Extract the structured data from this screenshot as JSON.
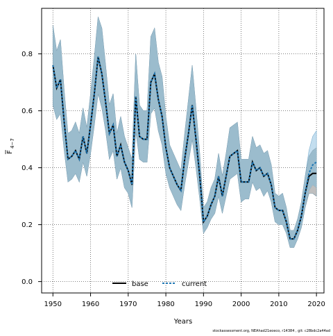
{
  "chart_data": {
    "type": "line",
    "xlabel": "Years",
    "ylabel_main": "F",
    "ylabel_sub": "4−7",
    "xlim": [
      1947,
      2022
    ],
    "ylim": [
      -0.04,
      0.96
    ],
    "x_ticks": [
      1950,
      1960,
      1970,
      1980,
      1990,
      2000,
      2010,
      2020
    ],
    "y_ticks": [
      0.0,
      0.2,
      0.4,
      0.6,
      0.8
    ],
    "x_tick_labels": [
      "1950",
      "1960",
      "1970",
      "1980",
      "1990",
      "2000",
      "2010",
      "2020"
    ],
    "y_tick_labels": [
      "0.0",
      "0.2",
      "0.4",
      "0.6",
      "0.8"
    ],
    "grid": true,
    "legend_position": "bottom-center",
    "footer": "stockassessment.org, NEAhad21eoeco, r14384 , git: c28bdc2a44ad",
    "colors": {
      "band": "#9bbccd",
      "band_edge": "#6f8ea0",
      "overlap": "#a9a9a9",
      "current_band": "#b8d8ec",
      "base_line": "#000000",
      "current_line": "#1f77b4"
    },
    "x": [
      1950,
      1951,
      1952,
      1953,
      1954,
      1955,
      1956,
      1957,
      1958,
      1959,
      1960,
      1961,
      1962,
      1963,
      1964,
      1965,
      1966,
      1967,
      1968,
      1969,
      1970,
      1971,
      1972,
      1973,
      1974,
      1975,
      1976,
      1977,
      1978,
      1979,
      1980,
      1981,
      1982,
      1983,
      1984,
      1985,
      1986,
      1987,
      1988,
      1989,
      1990,
      1991,
      1992,
      1993,
      1994,
      1995,
      1996,
      1997,
      1998,
      1999,
      2000,
      2001,
      2002,
      2003,
      2004,
      2005,
      2006,
      2007,
      2008,
      2009,
      2010,
      2011,
      2012,
      2013,
      2014,
      2015,
      2016,
      2017,
      2018,
      2019,
      2020
    ],
    "series": [
      {
        "name": "base",
        "values": [
          0.76,
          0.68,
          0.71,
          0.56,
          0.43,
          0.44,
          0.46,
          0.43,
          0.51,
          0.45,
          0.55,
          0.66,
          0.79,
          0.73,
          0.63,
          0.52,
          0.55,
          0.44,
          0.48,
          0.42,
          0.39,
          0.34,
          0.65,
          0.51,
          0.5,
          0.5,
          0.7,
          0.73,
          0.64,
          0.58,
          0.47,
          0.4,
          0.37,
          0.34,
          0.32,
          0.43,
          0.52,
          0.62,
          0.5,
          0.37,
          0.21,
          0.23,
          0.27,
          0.3,
          0.37,
          0.3,
          0.37,
          0.44,
          0.45,
          0.46,
          0.35,
          0.35,
          0.35,
          0.42,
          0.39,
          0.4,
          0.37,
          0.38,
          0.34,
          0.26,
          0.25,
          0.25,
          0.21,
          0.15,
          0.15,
          0.18,
          0.23,
          0.31,
          0.37,
          0.38,
          0.38
        ],
        "lower": [
          0.62,
          0.57,
          0.59,
          0.46,
          0.35,
          0.36,
          0.38,
          0.35,
          0.42,
          0.37,
          0.45,
          0.55,
          0.66,
          0.61,
          0.53,
          0.43,
          0.46,
          0.36,
          0.4,
          0.33,
          0.31,
          0.26,
          0.53,
          0.43,
          0.42,
          0.42,
          0.59,
          0.61,
          0.53,
          0.48,
          0.38,
          0.33,
          0.3,
          0.27,
          0.25,
          0.34,
          0.42,
          0.5,
          0.4,
          0.29,
          0.17,
          0.19,
          0.22,
          0.24,
          0.3,
          0.24,
          0.3,
          0.36,
          0.37,
          0.38,
          0.28,
          0.29,
          0.29,
          0.35,
          0.32,
          0.33,
          0.3,
          0.32,
          0.28,
          0.21,
          0.2,
          0.2,
          0.17,
          0.12,
          0.12,
          0.15,
          0.19,
          0.26,
          0.31,
          0.31,
          0.3
        ],
        "upper": [
          0.9,
          0.81,
          0.85,
          0.67,
          0.52,
          0.53,
          0.56,
          0.52,
          0.61,
          0.54,
          0.66,
          0.79,
          0.93,
          0.89,
          0.76,
          0.62,
          0.66,
          0.52,
          0.58,
          0.51,
          0.47,
          0.43,
          0.8,
          0.62,
          0.6,
          0.6,
          0.86,
          0.89,
          0.77,
          0.72,
          0.58,
          0.48,
          0.45,
          0.42,
          0.39,
          0.52,
          0.64,
          0.76,
          0.61,
          0.45,
          0.26,
          0.28,
          0.33,
          0.36,
          0.45,
          0.37,
          0.45,
          0.54,
          0.55,
          0.56,
          0.43,
          0.43,
          0.43,
          0.51,
          0.47,
          0.48,
          0.45,
          0.46,
          0.41,
          0.31,
          0.3,
          0.31,
          0.26,
          0.18,
          0.18,
          0.22,
          0.28,
          0.37,
          0.44,
          0.46,
          0.47
        ]
      },
      {
        "name": "current",
        "values": [
          0.76,
          0.68,
          0.71,
          0.56,
          0.43,
          0.44,
          0.46,
          0.43,
          0.51,
          0.45,
          0.55,
          0.66,
          0.79,
          0.73,
          0.63,
          0.52,
          0.55,
          0.44,
          0.48,
          0.42,
          0.39,
          0.34,
          0.65,
          0.51,
          0.5,
          0.5,
          0.7,
          0.73,
          0.64,
          0.58,
          0.47,
          0.4,
          0.37,
          0.34,
          0.32,
          0.43,
          0.52,
          0.62,
          0.5,
          0.37,
          0.21,
          0.23,
          0.27,
          0.3,
          0.37,
          0.3,
          0.37,
          0.44,
          0.45,
          0.46,
          0.35,
          0.35,
          0.35,
          0.42,
          0.39,
          0.4,
          0.37,
          0.38,
          0.34,
          0.26,
          0.25,
          0.25,
          0.21,
          0.15,
          0.15,
          0.18,
          0.23,
          0.31,
          0.38,
          0.41,
          0.42
        ],
        "lower": [
          0.62,
          0.57,
          0.59,
          0.46,
          0.35,
          0.36,
          0.38,
          0.35,
          0.42,
          0.37,
          0.45,
          0.55,
          0.66,
          0.61,
          0.53,
          0.43,
          0.46,
          0.36,
          0.4,
          0.33,
          0.31,
          0.26,
          0.53,
          0.43,
          0.42,
          0.42,
          0.59,
          0.61,
          0.53,
          0.48,
          0.38,
          0.33,
          0.3,
          0.27,
          0.25,
          0.34,
          0.42,
          0.5,
          0.4,
          0.29,
          0.17,
          0.19,
          0.22,
          0.24,
          0.3,
          0.24,
          0.3,
          0.36,
          0.37,
          0.38,
          0.28,
          0.29,
          0.29,
          0.35,
          0.32,
          0.33,
          0.3,
          0.32,
          0.28,
          0.21,
          0.2,
          0.2,
          0.17,
          0.12,
          0.12,
          0.15,
          0.19,
          0.26,
          0.32,
          0.34,
          0.33
        ],
        "upper": [
          0.9,
          0.81,
          0.85,
          0.67,
          0.52,
          0.53,
          0.56,
          0.52,
          0.61,
          0.54,
          0.66,
          0.79,
          0.93,
          0.89,
          0.76,
          0.62,
          0.66,
          0.52,
          0.58,
          0.51,
          0.47,
          0.43,
          0.8,
          0.62,
          0.6,
          0.6,
          0.86,
          0.89,
          0.77,
          0.72,
          0.58,
          0.48,
          0.45,
          0.42,
          0.39,
          0.52,
          0.64,
          0.76,
          0.61,
          0.45,
          0.26,
          0.28,
          0.33,
          0.36,
          0.45,
          0.37,
          0.45,
          0.54,
          0.55,
          0.56,
          0.43,
          0.43,
          0.43,
          0.51,
          0.47,
          0.48,
          0.45,
          0.46,
          0.41,
          0.31,
          0.3,
          0.31,
          0.26,
          0.18,
          0.18,
          0.22,
          0.28,
          0.37,
          0.46,
          0.51,
          0.53
        ]
      }
    ]
  }
}
